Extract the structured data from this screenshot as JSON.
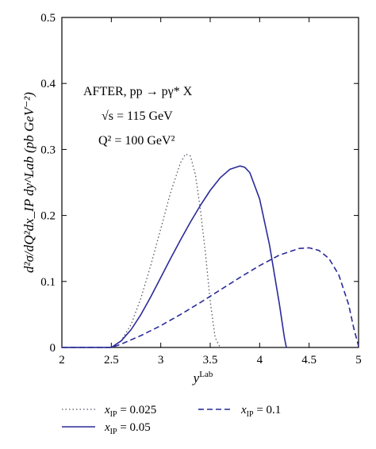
{
  "chart_data": {
    "type": "line",
    "xlim": [
      2,
      5
    ],
    "ylim": [
      0,
      0.5
    ],
    "x_ticks": [
      "2",
      "2.5",
      "3",
      "3.5",
      "4",
      "4.5",
      "5"
    ],
    "y_ticks": [
      "0",
      "0.1",
      "0.2",
      "0.3",
      "0.4",
      "0.5"
    ],
    "xlabel": {
      "base": "y",
      "sup": "Lab"
    },
    "ylabel": "d²σ/dQ²dx_IP dy^Lab (pb GeV⁻²)",
    "annotations": [
      "AFTER, pp → pγ* X",
      "√s = 115 GeV",
      "Q² = 100 GeV²"
    ],
    "legend_position": "bottom",
    "series": [
      {
        "name": "x_IP = 0.025",
        "legend_value": "0.025",
        "style": "dotted",
        "color": "#555566",
        "x": [
          2.5,
          2.6,
          2.7,
          2.8,
          2.9,
          3.0,
          3.1,
          3.2,
          3.25,
          3.3,
          3.35,
          3.4,
          3.45,
          3.5,
          3.55,
          3.6
        ],
        "y": [
          0.0,
          0.01,
          0.035,
          0.075,
          0.125,
          0.18,
          0.235,
          0.28,
          0.293,
          0.29,
          0.262,
          0.21,
          0.145,
          0.07,
          0.015,
          0.0
        ]
      },
      {
        "name": "x_IP = 0.05",
        "legend_value": "0.05",
        "style": "solid",
        "color": "#2a2a9a",
        "x": [
          2.5,
          2.6,
          2.7,
          2.8,
          2.9,
          3.0,
          3.1,
          3.2,
          3.3,
          3.4,
          3.5,
          3.6,
          3.7,
          3.8,
          3.85,
          3.9,
          4.0,
          4.1,
          4.2,
          4.25,
          4.27
        ],
        "y": [
          0.0,
          0.01,
          0.027,
          0.05,
          0.077,
          0.106,
          0.135,
          0.163,
          0.19,
          0.215,
          0.238,
          0.257,
          0.27,
          0.275,
          0.273,
          0.265,
          0.225,
          0.155,
          0.065,
          0.015,
          0.0
        ]
      },
      {
        "name": "x_IP = 0.1",
        "legend_value": "0.1",
        "style": "dashed",
        "color": "#2a2a9a",
        "x": [
          2.5,
          2.6,
          2.8,
          3.0,
          3.2,
          3.4,
          3.6,
          3.8,
          4.0,
          4.2,
          4.4,
          4.5,
          4.6,
          4.7,
          4.8,
          4.9,
          4.95,
          5.0
        ],
        "y": [
          0.0,
          0.005,
          0.018,
          0.033,
          0.05,
          0.068,
          0.087,
          0.106,
          0.124,
          0.14,
          0.15,
          0.151,
          0.147,
          0.135,
          0.11,
          0.065,
          0.03,
          0.002
        ]
      }
    ]
  }
}
